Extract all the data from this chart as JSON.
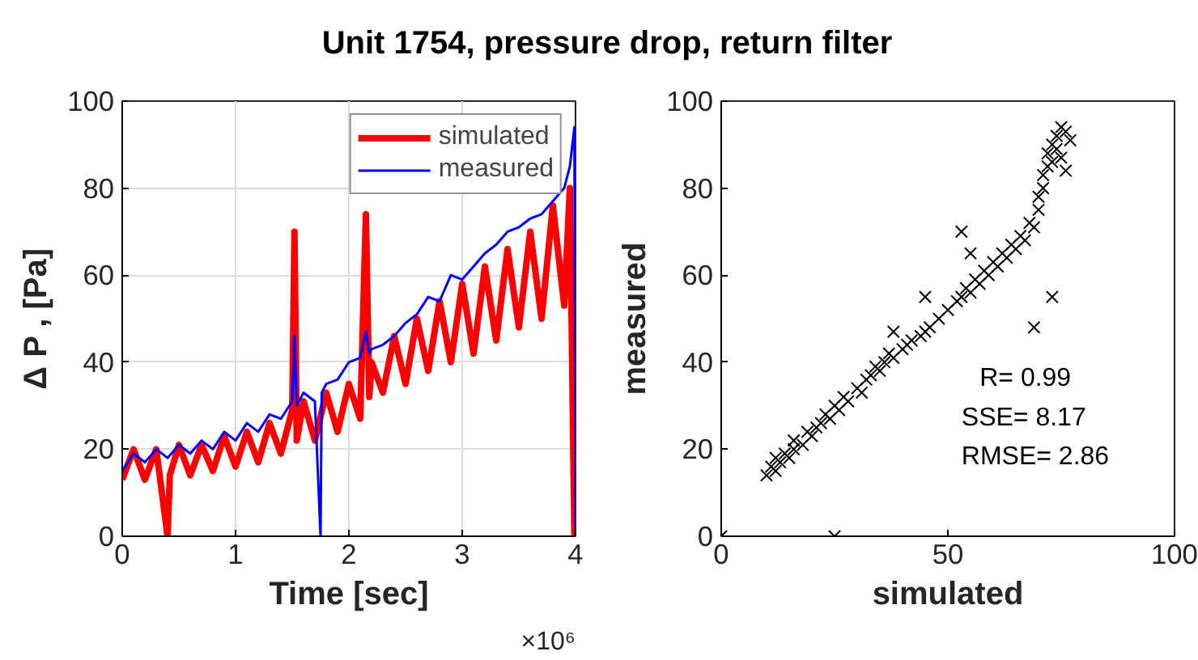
{
  "chart_data": [
    {
      "type": "line",
      "title": "Unit 1754, pressure drop, return filter",
      "xlabel": "Time [sec]",
      "ylabel": "Δ P , [Pa]",
      "xlim": [
        0,
        4
      ],
      "ylim": [
        0,
        100
      ],
      "xticks": [
        0,
        1,
        2,
        3,
        4
      ],
      "yticks": [
        0,
        20,
        40,
        60,
        80,
        100
      ],
      "grid": true,
      "legend": "top right",
      "annotations": [
        "×10⁶"
      ],
      "series": [
        {
          "name": "simulated",
          "color": "#ff0000",
          "x": [
            0,
            0.1,
            0.2,
            0.3,
            0.4,
            0.42,
            0.5,
            0.6,
            0.7,
            0.8,
            0.9,
            1,
            1.1,
            1.2,
            1.3,
            1.4,
            1.5,
            1.52,
            1.54,
            1.6,
            1.7,
            1.8,
            1.9,
            2,
            2.1,
            2.15,
            2.18,
            2.2,
            2.3,
            2.4,
            2.5,
            2.6,
            2.7,
            2.8,
            2.9,
            3,
            3.1,
            3.2,
            3.3,
            3.4,
            3.5,
            3.6,
            3.7,
            3.8,
            3.9,
            3.95,
            3.99,
            4
          ],
          "values": [
            13,
            20,
            13,
            20,
            0,
            14,
            21,
            14,
            21,
            15,
            23,
            16,
            24,
            17,
            26,
            19,
            29,
            70,
            22,
            31,
            22,
            33,
            24,
            35,
            27,
            74,
            32,
            40,
            33,
            46,
            35,
            50,
            38,
            54,
            40,
            58,
            42,
            62,
            45,
            66,
            48,
            70,
            50,
            76,
            53,
            80,
            0,
            58
          ]
        },
        {
          "name": "measured",
          "color": "#0000ff",
          "x": [
            0,
            0.1,
            0.2,
            0.3,
            0.4,
            0.5,
            0.6,
            0.7,
            0.8,
            0.9,
            1,
            1.1,
            1.2,
            1.3,
            1.4,
            1.5,
            1.52,
            1.54,
            1.6,
            1.7,
            1.75,
            1.76,
            1.8,
            1.9,
            2,
            2.1,
            2.15,
            2.18,
            2.2,
            2.3,
            2.4,
            2.5,
            2.6,
            2.7,
            2.8,
            2.9,
            3,
            3.1,
            3.2,
            3.3,
            3.4,
            3.5,
            3.6,
            3.7,
            3.8,
            3.9,
            3.95,
            3.99,
            4
          ],
          "values": [
            15,
            19,
            17,
            20,
            18,
            21,
            19,
            22,
            20,
            24,
            22,
            26,
            24,
            28,
            27,
            31,
            46,
            30,
            33,
            31,
            0,
            33,
            35,
            36,
            40,
            41,
            47,
            42,
            43,
            44,
            46,
            49,
            51,
            55,
            54,
            60,
            59,
            62,
            65,
            67,
            70,
            71,
            73,
            74,
            77,
            80,
            85,
            94,
            0
          ]
        }
      ]
    },
    {
      "type": "scatter",
      "xlabel": "simulated",
      "ylabel": "measured",
      "xlim": [
        0,
        100
      ],
      "ylim": [
        0,
        100
      ],
      "xticks": [
        0,
        50,
        100
      ],
      "yticks": [
        0,
        20,
        40,
        60,
        80,
        100
      ],
      "marker": "cross",
      "annotations": [
        "R= 0.99",
        "SSE= 8.17",
        "RMSE= 2.86"
      ],
      "series": [
        {
          "color": "#000000",
          "x": [
            0,
            25,
            10,
            11,
            12,
            12,
            13,
            14,
            15,
            16,
            16,
            18,
            19,
            20,
            21,
            22,
            23,
            24,
            25,
            26,
            27,
            28,
            30,
            31,
            32,
            33,
            34,
            35,
            36,
            37,
            38,
            40,
            41,
            42,
            44,
            45,
            46,
            48,
            50,
            52,
            53,
            54,
            55,
            56,
            57,
            58,
            59,
            60,
            61,
            62,
            63,
            64,
            65,
            66,
            67,
            68,
            69,
            70,
            70,
            71,
            71,
            72,
            72,
            73,
            73,
            74,
            74,
            75,
            75,
            76,
            76,
            77,
            53,
            69,
            73,
            55,
            45,
            38
          ],
          "values": [
            0,
            0,
            14,
            16,
            15,
            18,
            17,
            19,
            18,
            20,
            22,
            21,
            24,
            23,
            25,
            26,
            28,
            27,
            30,
            29,
            32,
            31,
            34,
            33,
            36,
            37,
            39,
            38,
            40,
            42,
            41,
            43,
            44,
            45,
            46,
            47,
            48,
            50,
            52,
            54,
            55,
            57,
            56,
            59,
            58,
            61,
            60,
            63,
            62,
            65,
            64,
            67,
            66,
            69,
            68,
            72,
            71,
            75,
            78,
            80,
            83,
            85,
            88,
            86,
            90,
            92,
            89,
            94,
            87,
            93,
            84,
            91,
            70,
            48,
            55,
            65,
            55,
            47
          ]
        }
      ]
    }
  ]
}
